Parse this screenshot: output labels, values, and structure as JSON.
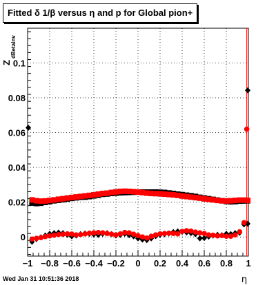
{
  "chart_data": {
    "type": "scatter",
    "title": "Fitted δ 1/β versus η and p for Global pion+",
    "xlabel": "η",
    "ylabel": "Z",
    "ylabel_subscript": "dBetainv",
    "xlim": [
      -1.0,
      1.0
    ],
    "ylim": [
      -0.011,
      0.12
    ],
    "grid": true,
    "x_ticks": [
      -1,
      -0.8,
      -0.6,
      -0.4,
      -0.2,
      0,
      0.2,
      0.4,
      0.6,
      0.8,
      1
    ],
    "x_tick_labels": [
      "−1",
      "−0.8",
      "−0.6",
      "−0.4",
      "−0.2",
      "0",
      "0.2",
      "0.4",
      "0.6",
      "0.8",
      "1"
    ],
    "y_ticks": [
      0,
      0.02,
      0.04,
      0.06,
      0.08,
      0.1
    ],
    "y_tick_labels": [
      "0",
      "0.02",
      "0.04",
      "0.06",
      "0.08",
      "0.1"
    ],
    "vertical_line_x": 0.985,
    "series": [
      {
        "color": "#000000",
        "marker": "square",
        "points": [
          [
            -0.96,
            0.0195
          ],
          [
            -0.92,
            0.0192
          ],
          [
            -0.88,
            0.0194
          ],
          [
            -0.84,
            0.0199
          ],
          [
            -0.8,
            0.0203
          ],
          [
            -0.76,
            0.0208
          ],
          [
            -0.72,
            0.0211
          ],
          [
            -0.68,
            0.0214
          ],
          [
            -0.64,
            0.0218
          ],
          [
            -0.6,
            0.0222
          ],
          [
            -0.56,
            0.0225
          ],
          [
            -0.52,
            0.0228
          ],
          [
            -0.48,
            0.0229
          ],
          [
            -0.44,
            0.0232
          ],
          [
            -0.4,
            0.0236
          ],
          [
            -0.36,
            0.024
          ],
          [
            -0.32,
            0.0245
          ],
          [
            -0.28,
            0.0247
          ],
          [
            -0.24,
            0.025
          ],
          [
            -0.2,
            0.0252
          ],
          [
            -0.16,
            0.0254
          ],
          [
            -0.12,
            0.0255
          ],
          [
            -0.08,
            0.0256
          ],
          [
            -0.04,
            0.0257
          ],
          [
            0.0,
            0.0258
          ],
          [
            0.04,
            0.0258
          ],
          [
            0.08,
            0.0258
          ],
          [
            0.12,
            0.0258
          ],
          [
            0.16,
            0.0258
          ],
          [
            0.2,
            0.0257
          ],
          [
            0.24,
            0.0256
          ],
          [
            0.28,
            0.0253
          ],
          [
            0.32,
            0.025
          ],
          [
            0.36,
            0.0246
          ],
          [
            0.4,
            0.0243
          ],
          [
            0.44,
            0.024
          ],
          [
            0.48,
            0.0237
          ],
          [
            0.52,
            0.0233
          ],
          [
            0.56,
            0.0228
          ],
          [
            0.6,
            0.0224
          ],
          [
            0.64,
            0.022
          ],
          [
            0.68,
            0.0216
          ],
          [
            0.72,
            0.0212
          ],
          [
            0.76,
            0.0208
          ],
          [
            0.8,
            0.0204
          ],
          [
            0.84,
            0.0202
          ],
          [
            0.88,
            0.0203
          ],
          [
            0.92,
            0.0206
          ],
          [
            0.96,
            0.0207
          ],
          [
            1.0,
            0.0208
          ]
        ]
      },
      {
        "color": "#ff0000",
        "marker": "square",
        "points": [
          [
            -0.96,
            0.0213
          ],
          [
            -0.92,
            0.0208
          ],
          [
            -0.88,
            0.0206
          ],
          [
            -0.84,
            0.0207
          ],
          [
            -0.8,
            0.021
          ],
          [
            -0.76,
            0.0213
          ],
          [
            -0.72,
            0.0217
          ],
          [
            -0.68,
            0.022
          ],
          [
            -0.64,
            0.0224
          ],
          [
            -0.6,
            0.0227
          ],
          [
            -0.56,
            0.023
          ],
          [
            -0.52,
            0.0233
          ],
          [
            -0.48,
            0.0236
          ],
          [
            -0.44,
            0.0239
          ],
          [
            -0.4,
            0.0242
          ],
          [
            -0.36,
            0.0246
          ],
          [
            -0.32,
            0.025
          ],
          [
            -0.28,
            0.0252
          ],
          [
            -0.24,
            0.0256
          ],
          [
            -0.2,
            0.0259
          ],
          [
            -0.16,
            0.0262
          ],
          [
            -0.12,
            0.0263
          ],
          [
            -0.08,
            0.0262
          ],
          [
            -0.04,
            0.026
          ],
          [
            0.0,
            0.0258
          ],
          [
            0.04,
            0.0255
          ],
          [
            0.08,
            0.0252
          ],
          [
            0.12,
            0.025
          ],
          [
            0.16,
            0.0249
          ],
          [
            0.2,
            0.0248
          ],
          [
            0.24,
            0.0246
          ],
          [
            0.28,
            0.0244
          ],
          [
            0.32,
            0.0242
          ],
          [
            0.36,
            0.0239
          ],
          [
            0.4,
            0.0235
          ],
          [
            0.44,
            0.0232
          ],
          [
            0.48,
            0.0229
          ],
          [
            0.52,
            0.0226
          ],
          [
            0.56,
            0.0223
          ],
          [
            0.6,
            0.0219
          ],
          [
            0.64,
            0.0216
          ],
          [
            0.68,
            0.0213
          ],
          [
            0.72,
            0.021
          ],
          [
            0.76,
            0.0208
          ],
          [
            0.8,
            0.0207
          ],
          [
            0.84,
            0.0208
          ],
          [
            0.88,
            0.021
          ],
          [
            0.92,
            0.0212
          ],
          [
            0.96,
            0.0212
          ],
          [
            1.0,
            0.021
          ]
        ]
      },
      {
        "color": "#000000",
        "marker": "diamond",
        "points": [
          [
            -0.96,
            -0.0028
          ],
          [
            -0.92,
            -0.0012
          ],
          [
            -0.88,
            -0.0002
          ],
          [
            -0.84,
            0.0008
          ],
          [
            -0.8,
            0.0018
          ],
          [
            -0.76,
            0.0022
          ],
          [
            -0.72,
            0.0025
          ],
          [
            -0.68,
            0.0022
          ],
          [
            -0.64,
            0.0012
          ],
          [
            -0.6,
            0.0004
          ],
          [
            -0.56,
            0.0008
          ],
          [
            -0.52,
            0.0016
          ],
          [
            -0.48,
            0.002
          ],
          [
            -0.44,
            0.0018
          ],
          [
            -0.4,
            0.0014
          ],
          [
            -0.36,
            0.0012
          ],
          [
            -0.32,
            0.0018
          ],
          [
            -0.28,
            0.0022
          ],
          [
            -0.24,
            0.0016
          ],
          [
            -0.2,
            0.0008
          ],
          [
            -0.16,
            0.0012
          ],
          [
            -0.12,
            0.0018
          ],
          [
            -0.08,
            0.001
          ],
          [
            -0.04,
            0.0004
          ],
          [
            0.0,
            -0.0008
          ],
          [
            0.04,
            -0.0015
          ],
          [
            0.08,
            -0.0018
          ],
          [
            0.12,
            -0.0008
          ],
          [
            0.16,
            0.0005
          ],
          [
            0.2,
            0.0012
          ],
          [
            0.24,
            0.0016
          ],
          [
            0.28,
            0.002
          ],
          [
            0.32,
            0.0028
          ],
          [
            0.36,
            0.0032
          ],
          [
            0.4,
            0.003
          ],
          [
            0.44,
            0.0026
          ],
          [
            0.48,
            0.0022
          ],
          [
            0.52,
            0.0016
          ],
          [
            0.56,
            -0.0008
          ],
          [
            0.6,
            -0.0006
          ],
          [
            0.64,
            0.0002
          ],
          [
            0.68,
            0.0008
          ],
          [
            0.72,
            0.0012
          ],
          [
            0.76,
            0.001
          ],
          [
            0.8,
            0.0018
          ],
          [
            0.84,
            0.0016
          ],
          [
            0.88,
            0.0022
          ],
          [
            0.92,
            0.0024
          ],
          [
            0.96,
            0.0072
          ],
          [
            1.0,
            0.0076
          ],
          [
            -1.0,
            0.0628
          ],
          [
            1.0,
            0.0843
          ]
        ]
      },
      {
        "color": "#ff0000",
        "marker": "circle",
        "points": [
          [
            -0.96,
            -0.0012
          ],
          [
            -0.92,
            -0.0008
          ],
          [
            -0.88,
            -0.0004
          ],
          [
            -0.84,
            0.0002
          ],
          [
            -0.8,
            0.0006
          ],
          [
            -0.76,
            0.001
          ],
          [
            -0.72,
            0.0014
          ],
          [
            -0.68,
            0.0016
          ],
          [
            -0.64,
            0.0018
          ],
          [
            -0.6,
            0.0017
          ],
          [
            -0.56,
            0.0012
          ],
          [
            -0.52,
            0.0014
          ],
          [
            -0.48,
            0.0018
          ],
          [
            -0.44,
            0.0022
          ],
          [
            -0.4,
            0.0024
          ],
          [
            -0.36,
            0.0026
          ],
          [
            -0.32,
            0.0024
          ],
          [
            -0.28,
            0.002
          ],
          [
            -0.24,
            0.0016
          ],
          [
            -0.2,
            0.0012
          ],
          [
            -0.16,
            0.0018
          ],
          [
            -0.12,
            0.0026
          ],
          [
            -0.08,
            0.0024
          ],
          [
            -0.04,
            0.0016
          ],
          [
            0.0,
            0.0008
          ],
          [
            0.04,
            0.0
          ],
          [
            0.08,
            -0.0006
          ],
          [
            0.12,
            0.0004
          ],
          [
            0.16,
            0.0012
          ],
          [
            0.2,
            0.0018
          ],
          [
            0.24,
            0.002
          ],
          [
            0.28,
            0.0022
          ],
          [
            0.32,
            0.002
          ],
          [
            0.36,
            0.0018
          ],
          [
            0.4,
            0.0032
          ],
          [
            0.44,
            0.0036
          ],
          [
            0.48,
            0.0034
          ],
          [
            0.52,
            0.0028
          ],
          [
            0.56,
            0.0024
          ],
          [
            0.6,
            0.002
          ],
          [
            0.64,
            0.0012
          ],
          [
            0.68,
            0.001
          ],
          [
            0.72,
            0.0006
          ],
          [
            0.76,
            0.0008
          ],
          [
            0.8,
            0.0004
          ],
          [
            0.84,
            0.0004
          ],
          [
            0.88,
            0.0012
          ],
          [
            0.92,
            0.003
          ],
          [
            0.96,
            0.0082
          ],
          [
            0.985,
            0.062
          ]
        ]
      }
    ]
  },
  "footer": {
    "timestamp": "Wed Jan 31 10:51:36 2018"
  }
}
